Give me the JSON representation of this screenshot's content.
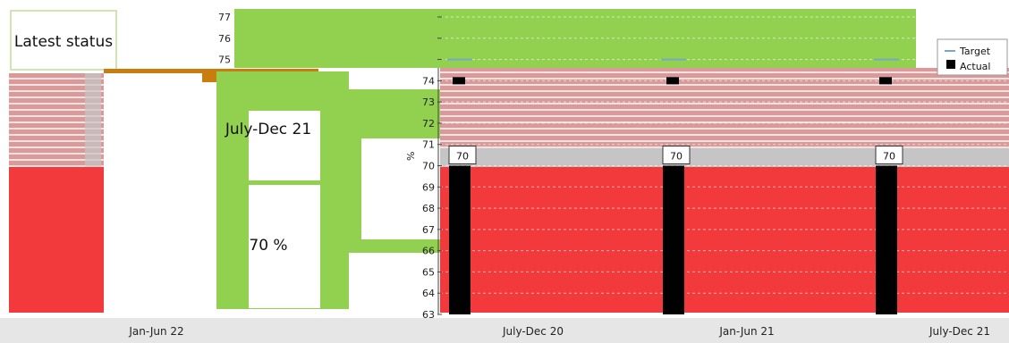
{
  "status_panel": {
    "heading": "Latest status",
    "period": "July-Dec 21",
    "value": "70 %",
    "period_label": "Jan-Jun 22"
  },
  "legend": {
    "target": "Target",
    "actual": "Actual"
  },
  "colors": {
    "green": "#92d050",
    "red": "#f2393b",
    "pink": "#d99a9a",
    "bar": "#000000",
    "band": "#c5c5c5",
    "orange": "#c97d0f"
  },
  "chart_data": {
    "type": "bar",
    "categories": [
      "July-Dec 20",
      "Jan-Jun 21",
      "July-Dec 21"
    ],
    "series": [
      {
        "name": "Actual",
        "values": [
          70,
          70,
          70
        ]
      },
      {
        "name": "Target",
        "values": [
          75,
          75,
          75
        ]
      }
    ],
    "data_labels": [
      "70",
      "70",
      "70"
    ],
    "ylabel": "%",
    "ylim": [
      63,
      77
    ],
    "yticks": [
      63,
      64,
      65,
      66,
      67,
      68,
      69,
      70,
      71,
      72,
      73,
      74,
      75,
      76,
      77
    ],
    "grid": true,
    "legend_position": "top-right"
  }
}
